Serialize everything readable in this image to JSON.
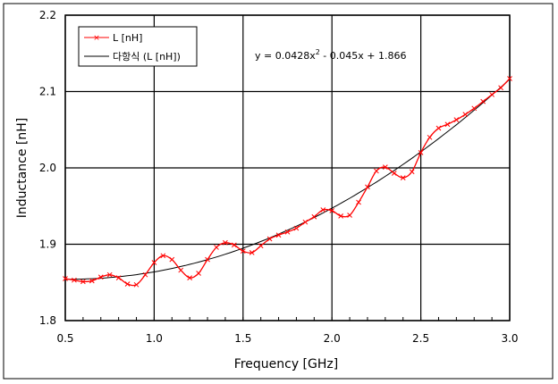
{
  "chart_data": {
    "type": "line",
    "xlabel": "Frequency [GHz]",
    "ylabel": "Inductance [nH]",
    "xlim": [
      0.5,
      3.0
    ],
    "ylim": [
      1.8,
      2.2
    ],
    "xticks": [
      "0.5",
      "1.0",
      "1.5",
      "2.0",
      "2.5",
      "3.0"
    ],
    "yticks": [
      "1.8",
      "1.9",
      "2.0",
      "2.1",
      "2.2"
    ],
    "grid": true,
    "legend_position": "top-left",
    "series": [
      {
        "name": "L [nH]",
        "color": "#ff0000",
        "marker": "x",
        "x": [
          0.5,
          0.55,
          0.6,
          0.65,
          0.7,
          0.75,
          0.8,
          0.85,
          0.9,
          0.95,
          1.0,
          1.05,
          1.1,
          1.15,
          1.2,
          1.25,
          1.3,
          1.35,
          1.4,
          1.45,
          1.5,
          1.55,
          1.6,
          1.65,
          1.7,
          1.75,
          1.8,
          1.85,
          1.9,
          1.95,
          2.0,
          2.05,
          2.1,
          2.15,
          2.2,
          2.25,
          2.3,
          2.35,
          2.4,
          2.45,
          2.5,
          2.55,
          2.6,
          2.65,
          2.7,
          2.75,
          2.8,
          2.85,
          2.9,
          2.95,
          3.0
        ],
        "y": [
          1.855,
          1.853,
          1.851,
          1.852,
          1.857,
          1.86,
          1.856,
          1.848,
          1.847,
          1.86,
          1.876,
          1.885,
          1.88,
          1.866,
          1.856,
          1.862,
          1.88,
          1.896,
          1.902,
          1.899,
          1.891,
          1.889,
          1.898,
          1.907,
          1.912,
          1.916,
          1.921,
          1.929,
          1.936,
          1.945,
          1.944,
          1.937,
          1.938,
          1.955,
          1.975,
          1.996,
          2.001,
          1.993,
          1.987,
          1.995,
          2.02,
          2.04,
          2.052,
          2.057,
          2.063,
          2.07,
          2.078,
          2.087,
          2.096,
          2.105,
          2.117
        ]
      },
      {
        "name": "다항식 (L [nH])",
        "color": "#000000",
        "type": "polynomial-trendline",
        "coefficients": [
          0.0428,
          -0.045,
          1.866
        ]
      }
    ],
    "annotations": [
      "y = 0.0428x² - 0.045x + 1.866"
    ]
  },
  "legend": {
    "series1": "L [nH]",
    "series2": "다항식 (L [nH])"
  },
  "equation": {
    "main": "y = 0.0428x",
    "sup": "2",
    "rest": " - 0.045x + 1.866"
  }
}
